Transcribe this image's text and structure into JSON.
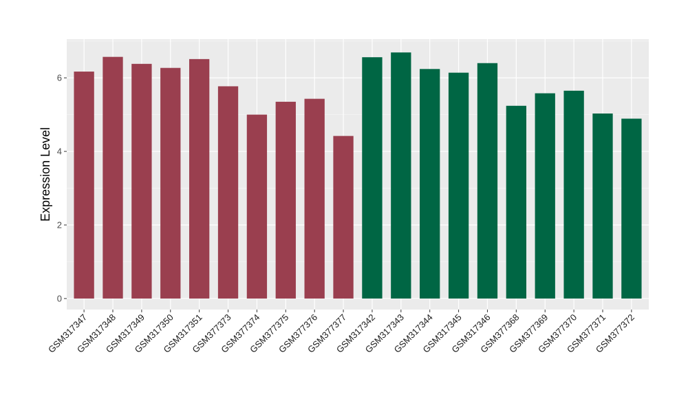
{
  "chart_data": {
    "type": "bar",
    "title": "",
    "xlabel": "",
    "ylabel": "Expression Level",
    "ylim": [
      -0.3,
      7.05
    ],
    "yticks": [
      0,
      2,
      4,
      6
    ],
    "grid": true,
    "legend": "none",
    "categories": [
      "GSM317347",
      "GSM317348",
      "GSM317349",
      "GSM317350",
      "GSM317351",
      "GSM377373",
      "GSM377374",
      "GSM377375",
      "GSM377376",
      "GSM377377",
      "GSM317342",
      "GSM317343",
      "GSM317344",
      "GSM317345",
      "GSM317346",
      "GSM377368",
      "GSM377369",
      "GSM377370",
      "GSM377371",
      "GSM377372"
    ],
    "values": [
      6.17,
      6.57,
      6.38,
      6.27,
      6.51,
      5.77,
      5.0,
      5.35,
      5.43,
      4.42,
      6.56,
      6.69,
      6.24,
      6.14,
      6.4,
      5.24,
      5.58,
      5.65,
      5.03,
      4.89
    ],
    "colors": [
      "#9a3f4f",
      "#9a3f4f",
      "#9a3f4f",
      "#9a3f4f",
      "#9a3f4f",
      "#9a3f4f",
      "#9a3f4f",
      "#9a3f4f",
      "#9a3f4f",
      "#9a3f4f",
      "#006644",
      "#006644",
      "#006644",
      "#006644",
      "#006644",
      "#006644",
      "#006644",
      "#006644",
      "#006644",
      "#006644"
    ]
  }
}
